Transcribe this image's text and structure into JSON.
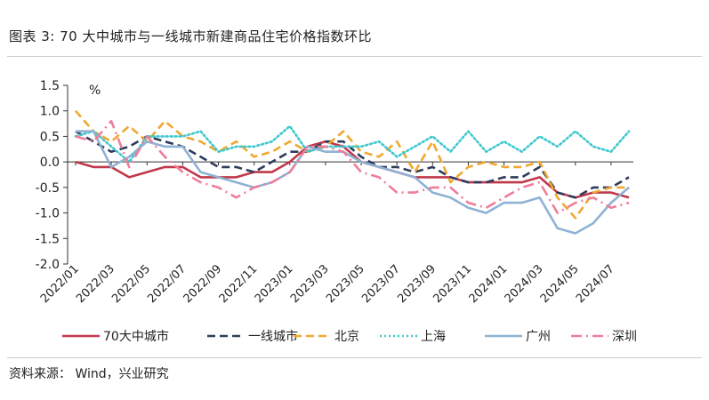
{
  "figure": {
    "title": "图表 3:  70 大中城市与一线城市新建商品住宅价格指数环比",
    "source": "资料来源： Wind，兴业研究"
  },
  "chart_data": {
    "type": "line",
    "title": "图表 3:  70 大中城市与一线城市新建商品住宅价格指数环比",
    "ylabel": "%",
    "xlabel": "",
    "ylim": [
      -2.0,
      1.5
    ],
    "y_ticks": [
      "1.5",
      "1.0",
      "0.5",
      "0.0",
      "-0.5",
      "-1.0",
      "-1.5",
      "-2.0"
    ],
    "y_tick_values": [
      1.5,
      1.0,
      0.5,
      0.0,
      -0.5,
      -1.0,
      -1.5,
      -2.0
    ],
    "categories": [
      "2022/01",
      "2022/02",
      "2022/03",
      "2022/04",
      "2022/05",
      "2022/06",
      "2022/07",
      "2022/08",
      "2022/09",
      "2022/10",
      "2022/11",
      "2022/12",
      "2023/01",
      "2023/02",
      "2023/03",
      "2023/04",
      "2023/05",
      "2023/06",
      "2023/07",
      "2023/08",
      "2023/09",
      "2023/10",
      "2023/11",
      "2023/12",
      "2024/01",
      "2024/02",
      "2024/03",
      "2024/04",
      "2024/05",
      "2024/06",
      "2024/07",
      "2024/08"
    ],
    "x_tick_labels": [
      "2022/01",
      "2022/03",
      "2022/05",
      "2022/07",
      "2022/09",
      "2022/11",
      "2023/01",
      "2023/03",
      "2023/05",
      "2023/07",
      "2023/09",
      "2023/11",
      "2024/01",
      "2024/03",
      "2024/05",
      "2024/07"
    ],
    "legend_position": "bottom",
    "series": [
      {
        "name": "70大中城市",
        "color": "#c0394b",
        "dash": "solid",
        "values": [
          0.0,
          -0.1,
          -0.1,
          -0.3,
          -0.2,
          -0.1,
          -0.1,
          -0.3,
          -0.3,
          -0.3,
          -0.2,
          -0.2,
          0.0,
          0.3,
          0.4,
          0.3,
          0.0,
          -0.1,
          -0.2,
          -0.3,
          -0.3,
          -0.3,
          -0.4,
          -0.4,
          -0.4,
          -0.4,
          -0.3,
          -0.6,
          -0.7,
          -0.6,
          -0.6,
          -0.7
        ]
      },
      {
        "name": "一线城市",
        "color": "#2e3c5c",
        "dash": "dashed",
        "values": [
          0.6,
          0.4,
          0.2,
          0.3,
          0.5,
          0.4,
          0.3,
          0.1,
          -0.1,
          -0.1,
          -0.2,
          0.0,
          0.2,
          0.2,
          0.4,
          0.4,
          0.1,
          -0.1,
          -0.1,
          -0.2,
          -0.1,
          -0.3,
          -0.4,
          -0.4,
          -0.3,
          -0.3,
          -0.1,
          -0.6,
          -0.7,
          -0.5,
          -0.5,
          -0.3
        ]
      },
      {
        "name": "北京",
        "color": "#f0a830",
        "dash": "dashed",
        "values": [
          1.0,
          0.6,
          0.4,
          0.7,
          0.4,
          0.8,
          0.5,
          0.4,
          0.2,
          0.4,
          0.1,
          0.2,
          0.4,
          0.2,
          0.3,
          0.6,
          0.2,
          0.1,
          0.4,
          -0.2,
          0.4,
          -0.4,
          -0.1,
          0.0,
          -0.1,
          -0.1,
          0.0,
          -0.7,
          -1.1,
          -0.6,
          -0.5,
          -0.5
        ]
      },
      {
        "name": "上海",
        "color": "#3fc8cf",
        "dash": "dotted",
        "values": [
          0.5,
          0.6,
          0.3,
          0.0,
          0.5,
          0.5,
          0.5,
          0.6,
          0.2,
          0.3,
          0.3,
          0.4,
          0.7,
          0.2,
          0.3,
          0.3,
          0.3,
          0.4,
          0.1,
          0.3,
          0.5,
          0.2,
          0.6,
          0.2,
          0.4,
          0.2,
          0.5,
          0.3,
          0.6,
          0.3,
          0.2,
          0.6
        ]
      },
      {
        "name": "广州",
        "color": "#8fb2d4",
        "dash": "solid",
        "values": [
          0.6,
          0.6,
          -0.1,
          0.1,
          0.4,
          0.3,
          0.3,
          -0.2,
          -0.3,
          -0.4,
          -0.5,
          -0.4,
          -0.2,
          0.3,
          0.2,
          0.2,
          0.0,
          -0.1,
          -0.2,
          -0.3,
          -0.6,
          -0.7,
          -0.9,
          -1.0,
          -0.8,
          -0.8,
          -0.7,
          -1.3,
          -1.4,
          -1.2,
          -0.8,
          -0.5
        ]
      },
      {
        "name": "深圳",
        "color": "#ef7d9a",
        "dash": "dashdot",
        "values": [
          0.5,
          0.4,
          0.8,
          -0.1,
          0.5,
          0.1,
          -0.2,
          -0.4,
          -0.5,
          -0.7,
          -0.5,
          -0.4,
          -0.2,
          0.3,
          0.3,
          0.2,
          -0.2,
          -0.3,
          -0.6,
          -0.6,
          -0.5,
          -0.5,
          -0.8,
          -0.9,
          -0.7,
          -0.5,
          -0.4,
          -1.0,
          -0.8,
          -0.7,
          -0.9,
          -0.8
        ]
      }
    ]
  }
}
